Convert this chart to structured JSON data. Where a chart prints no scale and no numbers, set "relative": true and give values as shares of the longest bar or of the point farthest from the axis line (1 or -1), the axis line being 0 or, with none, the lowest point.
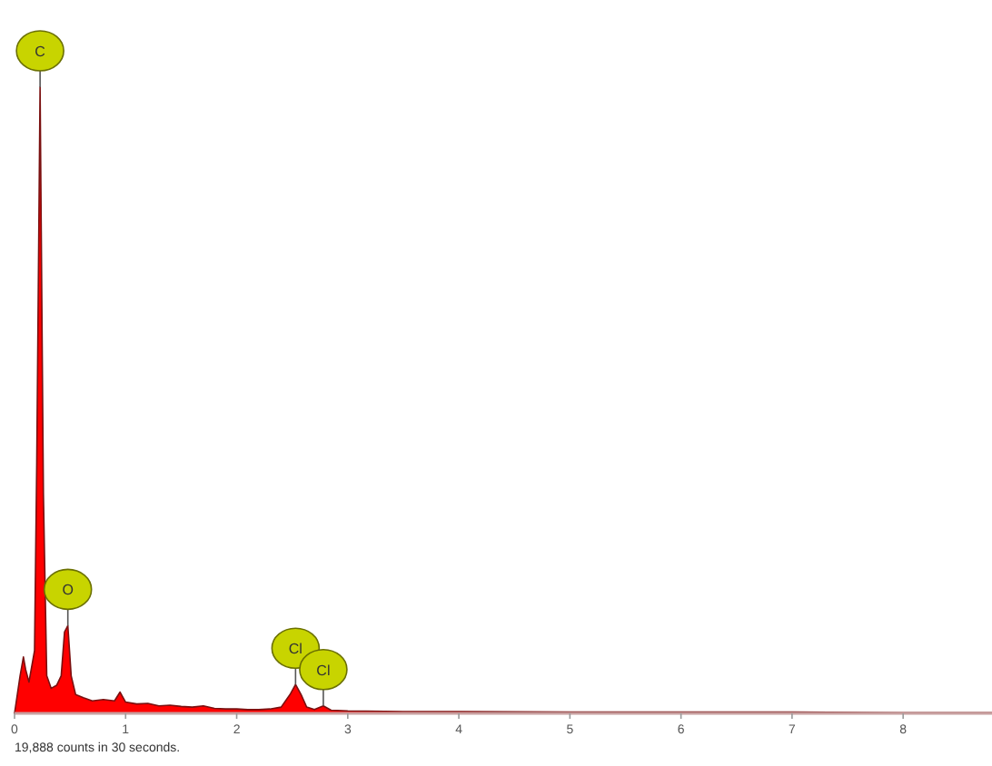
{
  "chart_data": {
    "type": "area",
    "relative": true,
    "x": [
      0,
      0.05,
      0.08,
      0.1,
      0.13,
      0.18,
      0.2,
      0.23,
      0.26,
      0.29,
      0.33,
      0.38,
      0.42,
      0.45,
      0.48,
      0.51,
      0.55,
      0.62,
      0.7,
      0.8,
      0.9,
      0.95,
      1.0,
      1.1,
      1.2,
      1.3,
      1.4,
      1.5,
      1.6,
      1.7,
      1.8,
      1.9,
      2.0,
      2.1,
      2.2,
      2.3,
      2.4,
      2.48,
      2.53,
      2.58,
      2.63,
      2.7,
      2.78,
      2.85,
      3.0,
      3.5,
      4,
      5,
      6,
      7,
      8,
      8.8
    ],
    "series": [
      {
        "color": "#ff0000",
        "values": [
          0,
          0.06,
          0.09,
          0.07,
          0.05,
          0.1,
          0.4,
          1,
          0.35,
          0.06,
          0.04,
          0.045,
          0.06,
          0.13,
          0.14,
          0.06,
          0.03,
          0.025,
          0.02,
          0.022,
          0.02,
          0.034,
          0.018,
          0.015,
          0.016,
          0.012,
          0.013,
          0.011,
          0.01,
          0.012,
          0.008,
          0.007,
          0.007,
          0.006,
          0.006,
          0.007,
          0.01,
          0.03,
          0.046,
          0.03,
          0.01,
          0.006,
          0.012,
          0.005,
          0.004,
          0.003,
          0.003,
          0.002,
          0.002,
          0.002,
          0.001,
          0.001
        ]
      }
    ],
    "xlim": [
      0,
      8.8
    ],
    "xticks": [
      0,
      1,
      2,
      3,
      4,
      5,
      6,
      7,
      8
    ],
    "annotations": [
      {
        "text": "C",
        "x": 0.23,
        "y": 1
      },
      {
        "text": "O",
        "x": 0.48,
        "y": 0.14
      },
      {
        "text": "Cl",
        "x": 2.53,
        "y": 0.046
      },
      {
        "text": "Cl",
        "x": 2.78,
        "y": 0.012
      },
      "19,888 counts in 30 seconds."
    ]
  }
}
